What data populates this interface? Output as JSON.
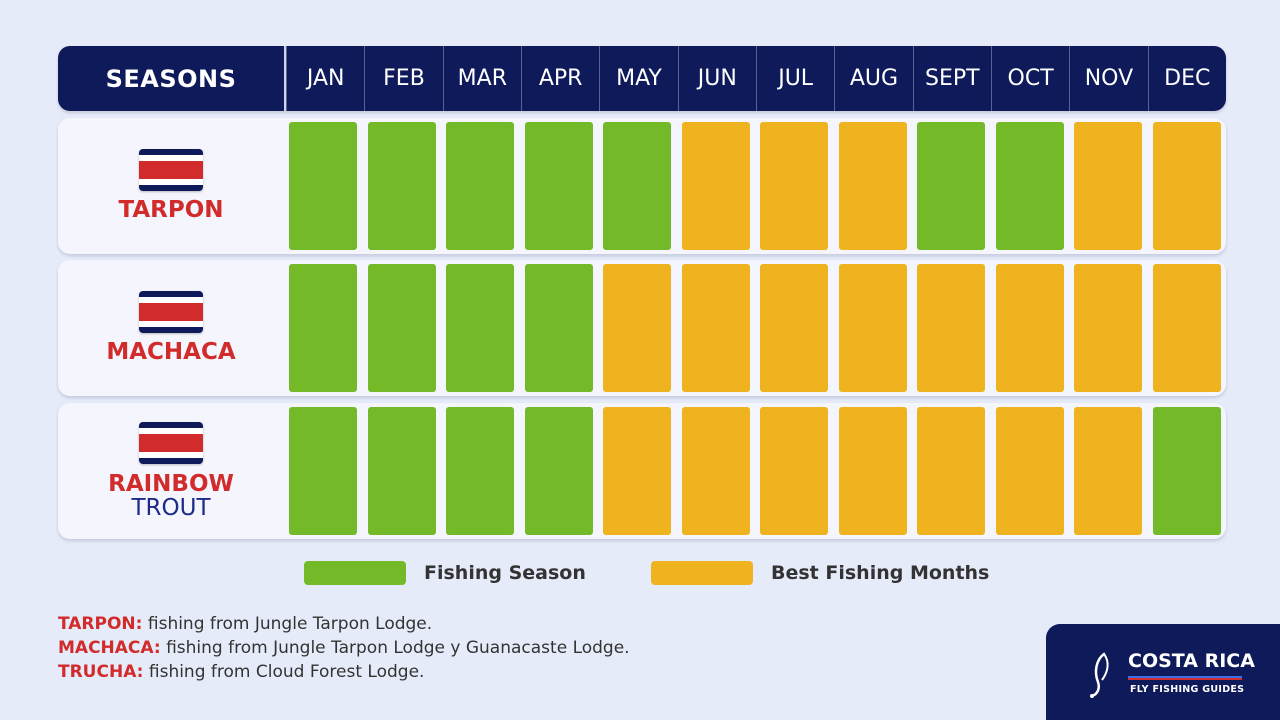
{
  "header": {
    "seasons_label": "SEASONS",
    "months": [
      "JAN",
      "FEB",
      "MAR",
      "APR",
      "MAY",
      "JUN",
      "JUL",
      "AUG",
      "SEPT",
      "OCT",
      "NOV",
      "DEC"
    ]
  },
  "rows": [
    {
      "name": "TARPON",
      "name2": ""
    },
    {
      "name": "MACHACA",
      "name2": ""
    },
    {
      "name": "RAINBOW",
      "name2": "TROUT"
    }
  ],
  "legend": {
    "season_label": "Fishing Season",
    "best_label": "Best Fishing Months"
  },
  "notes": [
    {
      "key": "TARPON:",
      "text": " fishing from Jungle Tarpon Lodge."
    },
    {
      "key": "MACHACA:",
      "text": "  fishing from Jungle Tarpon Lodge y Guanacaste Lodge."
    },
    {
      "key": "TRUCHA:",
      "text": " fishing from Cloud Forest Lodge."
    }
  ],
  "logo": {
    "title": "COSTA RICA",
    "subtitle": "FLY FISHING GUIDES"
  },
  "colors": {
    "season": "#74b928",
    "best": "#eeb31e",
    "navy": "#0e1a5a",
    "red": "#d12b2b"
  },
  "chart_data": {
    "type": "heatmap",
    "categories": [
      "JAN",
      "FEB",
      "MAR",
      "APR",
      "MAY",
      "JUN",
      "JUL",
      "AUG",
      "SEPT",
      "OCT",
      "NOV",
      "DEC"
    ],
    "series": [
      {
        "name": "TARPON",
        "values": [
          "Fishing Season",
          "Fishing Season",
          "Fishing Season",
          "Fishing Season",
          "Fishing Season",
          "Best Fishing Months",
          "Best Fishing Months",
          "Best Fishing Months",
          "Fishing Season",
          "Fishing Season",
          "Best Fishing Months",
          "Best Fishing Months"
        ]
      },
      {
        "name": "MACHACA",
        "values": [
          "Fishing Season",
          "Fishing Season",
          "Fishing Season",
          "Fishing Season",
          "Best Fishing Months",
          "Best Fishing Months",
          "Best Fishing Months",
          "Best Fishing Months",
          "Best Fishing Months",
          "Best Fishing Months",
          "Best Fishing Months",
          "Best Fishing Months"
        ]
      },
      {
        "name": "RAINBOW TROUT",
        "values": [
          "Fishing Season",
          "Fishing Season",
          "Fishing Season",
          "Fishing Season",
          "Best Fishing Months",
          "Best Fishing Months",
          "Best Fishing Months",
          "Best Fishing Months",
          "Best Fishing Months",
          "Best Fishing Months",
          "Best Fishing Months",
          "Fishing Season"
        ]
      }
    ],
    "legend": [
      "Fishing Season",
      "Best Fishing Months"
    ]
  }
}
